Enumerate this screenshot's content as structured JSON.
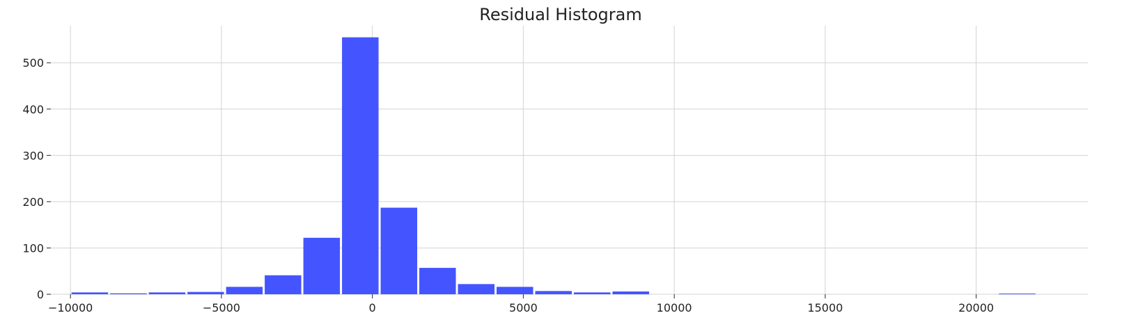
{
  "chart_data": {
    "type": "bar",
    "title": "Residual Histogram",
    "xlabel": "",
    "ylabel": "",
    "grid": true,
    "xlim": [
      -10650,
      23700
    ],
    "ylim": [
      0,
      580
    ],
    "xticks": [
      -10000,
      -5000,
      0,
      5000,
      10000,
      15000,
      20000
    ],
    "xtick_labels": [
      "−10000",
      "−5000",
      "0",
      "5000",
      "10000",
      "15000",
      "20000"
    ],
    "yticks": [
      0,
      100,
      200,
      300,
      400,
      500
    ],
    "bar_color": "#4455ff",
    "bin_width": 1280,
    "bins": [
      {
        "x0": -10000,
        "x1": -8720,
        "count": 4
      },
      {
        "x0": -8720,
        "x1": -7440,
        "count": 2
      },
      {
        "x0": -7440,
        "x1": -6160,
        "count": 4
      },
      {
        "x0": -6160,
        "x1": -4880,
        "count": 5
      },
      {
        "x0": -4880,
        "x1": -3600,
        "count": 16
      },
      {
        "x0": -3600,
        "x1": -2320,
        "count": 41
      },
      {
        "x0": -2320,
        "x1": -1040,
        "count": 122
      },
      {
        "x0": -1040,
        "x1": 240,
        "count": 555
      },
      {
        "x0": 240,
        "x1": 1520,
        "count": 187
      },
      {
        "x0": 1520,
        "x1": 2800,
        "count": 57
      },
      {
        "x0": 2800,
        "x1": 4080,
        "count": 22
      },
      {
        "x0": 4080,
        "x1": 5360,
        "count": 16
      },
      {
        "x0": 5360,
        "x1": 6640,
        "count": 7
      },
      {
        "x0": 6640,
        "x1": 7920,
        "count": 4
      },
      {
        "x0": 7920,
        "x1": 9200,
        "count": 6
      },
      {
        "x0": 20720,
        "x1": 22000,
        "count": 1
      }
    ]
  }
}
